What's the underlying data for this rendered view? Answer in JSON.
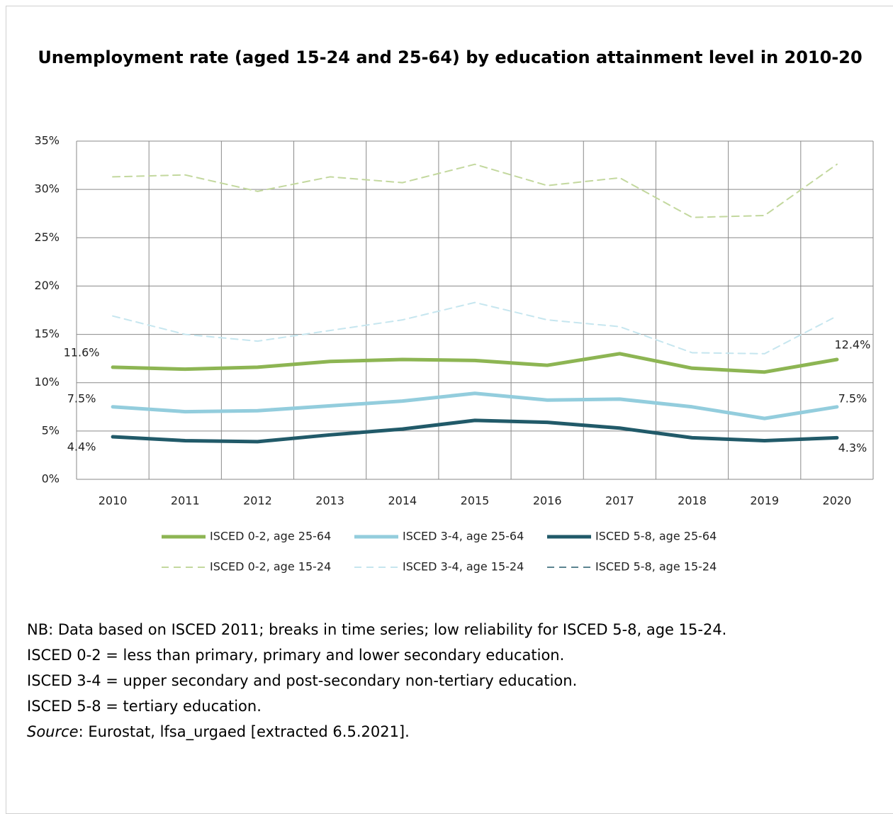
{
  "chart_data": {
    "type": "line",
    "title": "Unemployment rate (aged 15-24 and 25-64) by education attainment level in 2010-20",
    "categories": [
      "2010",
      "2011",
      "2012",
      "2013",
      "2014",
      "2015",
      "2016",
      "2017",
      "2018",
      "2019",
      "2020"
    ],
    "ylim": [
      0,
      35
    ],
    "yticks": [
      {
        "value": 0,
        "label": "0%"
      },
      {
        "value": 5,
        "label": "5%"
      },
      {
        "value": 10,
        "label": "10%"
      },
      {
        "value": 15,
        "label": "15%"
      },
      {
        "value": 20,
        "label": "20%"
      },
      {
        "value": 25,
        "label": "25%"
      },
      {
        "value": 30,
        "label": "30%"
      },
      {
        "value": 35,
        "label": "35%"
      }
    ],
    "grid": true,
    "series": [
      {
        "name": "ISCED 0-2, age 25-64",
        "color": "#8db553",
        "dash": false,
        "values": [
          11.6,
          11.4,
          11.6,
          12.2,
          12.4,
          12.3,
          11.8,
          13.0,
          11.5,
          11.1,
          12.4
        ],
        "value_labels": [
          "11.6%",
          null,
          null,
          null,
          null,
          null,
          null,
          null,
          null,
          null,
          "12.4%"
        ]
      },
      {
        "name": "ISCED 3-4, age 25-64",
        "color": "#93cddd",
        "dash": false,
        "values": [
          7.5,
          7.0,
          7.1,
          7.6,
          8.1,
          8.9,
          8.2,
          8.3,
          7.5,
          6.3,
          7.5
        ],
        "value_labels": [
          "7.5%",
          null,
          null,
          null,
          null,
          null,
          null,
          null,
          null,
          null,
          "7.5%"
        ]
      },
      {
        "name": "ISCED 5-8, age 25-64",
        "color": "#215a69",
        "dash": false,
        "values": [
          4.4,
          4.0,
          3.9,
          4.6,
          5.2,
          6.1,
          5.9,
          5.3,
          4.3,
          4.0,
          4.3
        ],
        "value_labels": [
          "4.4%",
          null,
          null,
          null,
          null,
          null,
          null,
          null,
          null,
          null,
          "4.3%"
        ]
      },
      {
        "name": "ISCED 0-2, age 15-24",
        "color": "#c3d89e",
        "dash": true,
        "values": [
          31.3,
          31.5,
          29.8,
          31.3,
          30.7,
          32.6,
          30.4,
          31.2,
          27.1,
          27.3,
          32.6
        ]
      },
      {
        "name": "ISCED 3-4, age 15-24",
        "color": "#c6e6ef",
        "dash": true,
        "values": [
          16.9,
          15.0,
          14.3,
          15.4,
          16.5,
          18.3,
          16.5,
          15.8,
          13.1,
          13.0,
          16.9
        ]
      },
      {
        "name": "ISCED 5-8, age 15-24",
        "color": "#5b8490",
        "dash": true,
        "values": [
          null,
          null,
          null,
          null,
          null,
          null,
          null,
          null,
          null,
          null,
          null
        ]
      }
    ]
  },
  "notes": {
    "nb": "NB: Data based on ISCED 2011; breaks in time series; low reliability for ISCED 5-8, age 15-24.",
    "isced02": "ISCED 0-2 = less than primary, primary and lower secondary education.",
    "isced34": "ISCED 3-4 = upper secondary and post-secondary non-tertiary education.",
    "isced58": "ISCED 5-8 = tertiary education.",
    "source_label": "Source",
    "source_text": ": Eurostat, lfsa_urgaed [extracted 6.5.2021]."
  }
}
